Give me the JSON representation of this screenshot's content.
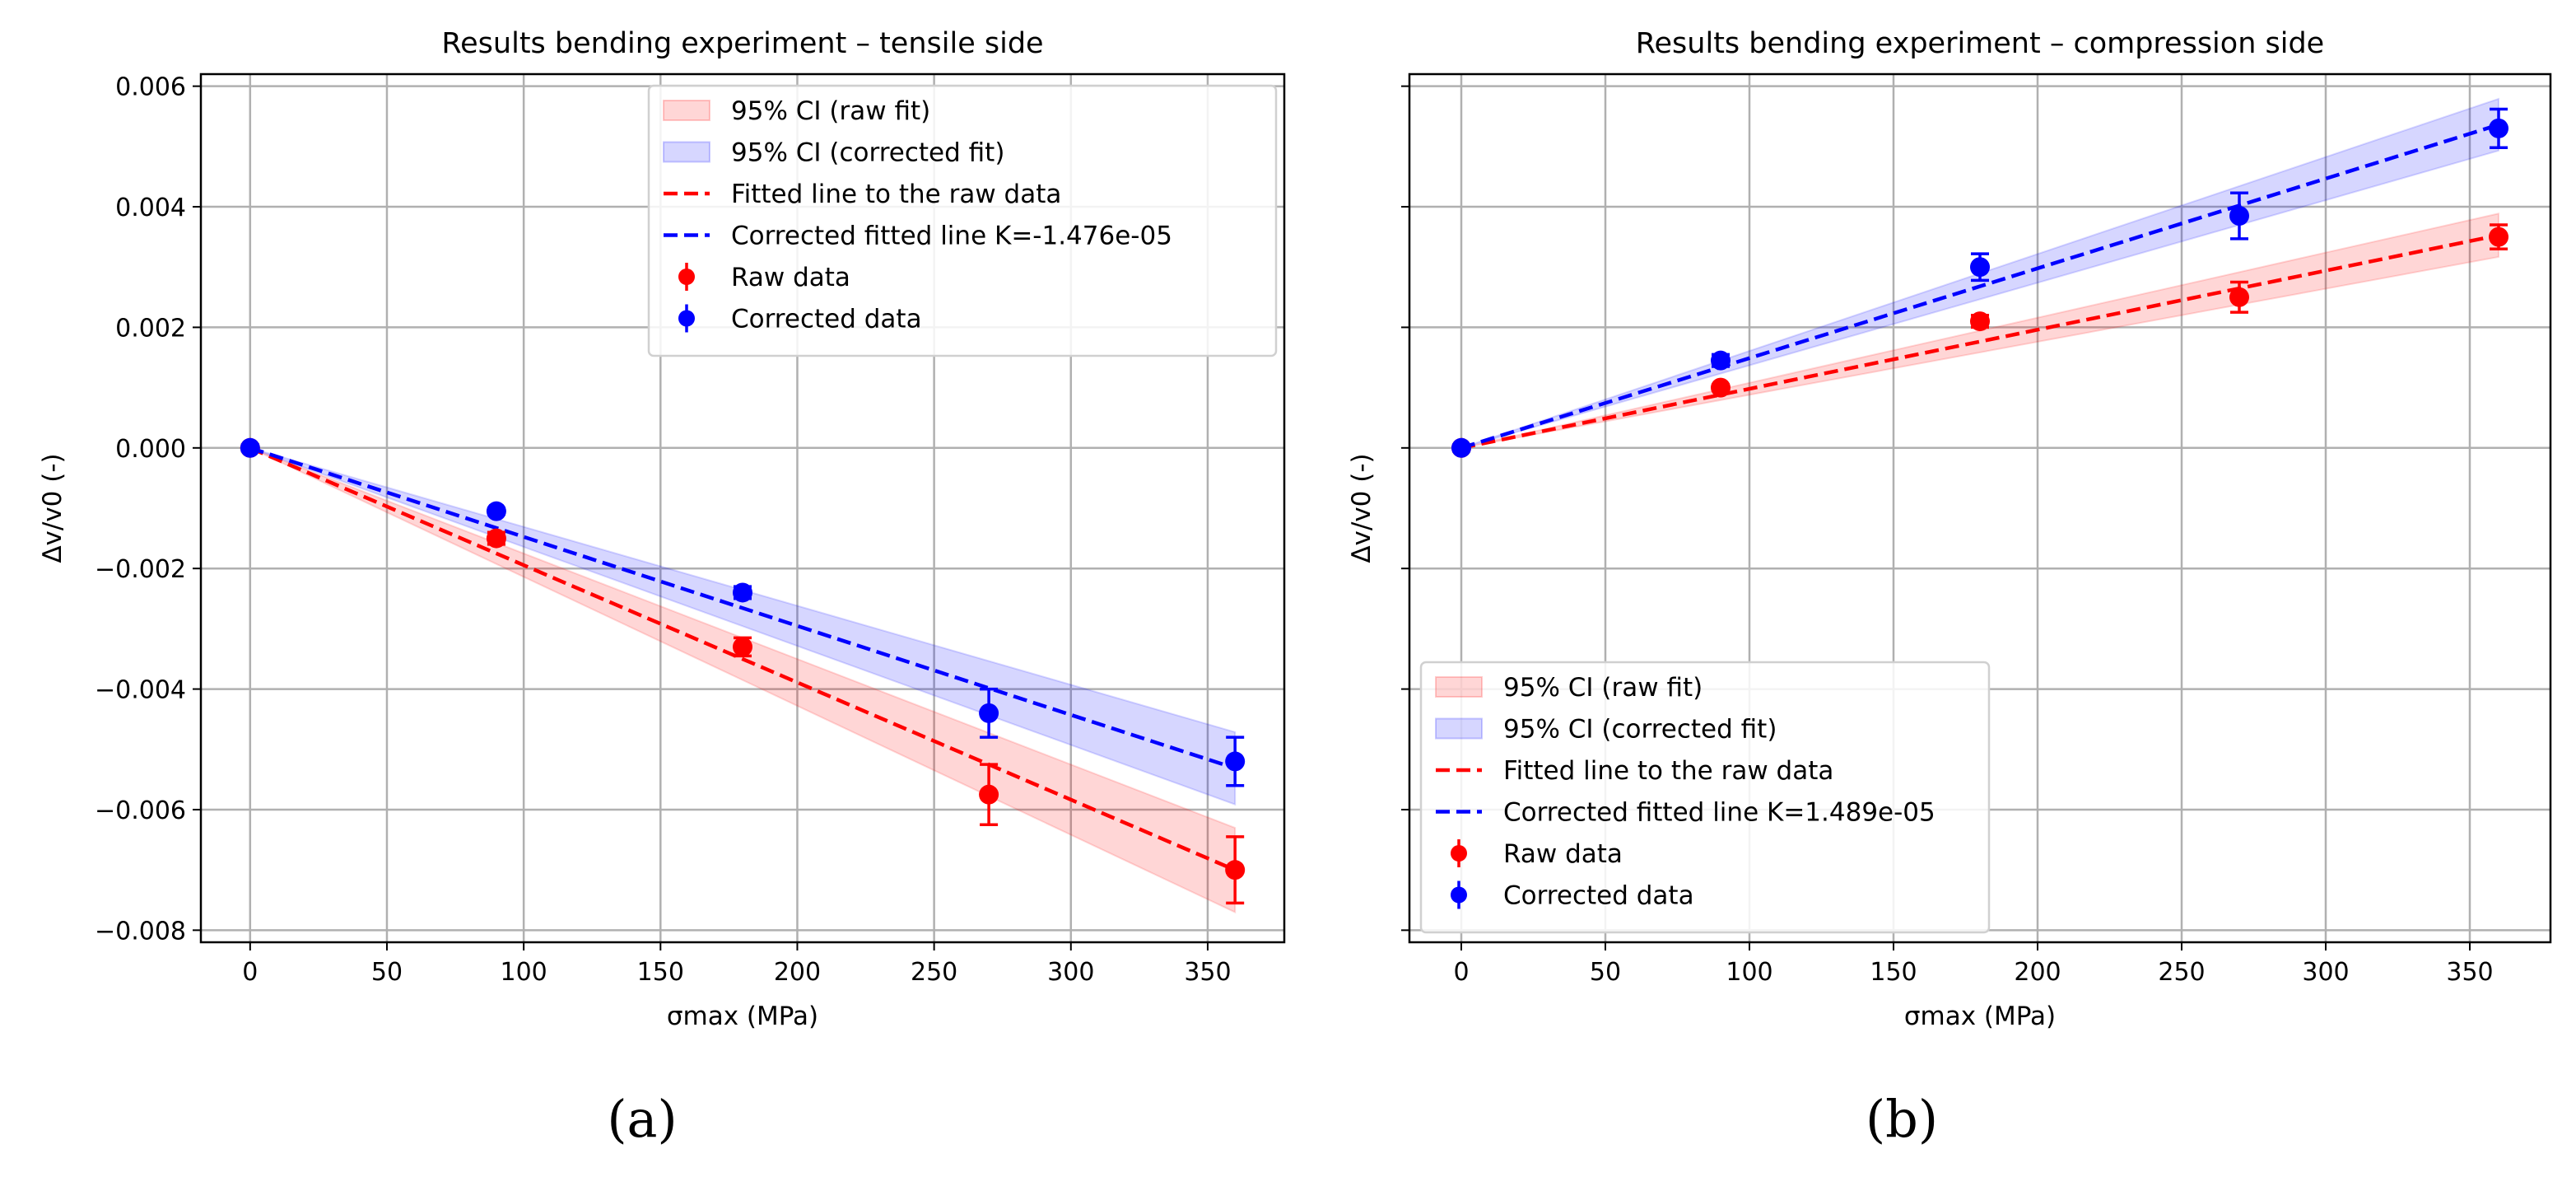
{
  "chart_data": [
    {
      "type": "scatter",
      "panel_label": "(a)",
      "title": "Results bending experiment – tensile side",
      "xlabel": "σmax (MPa)",
      "ylabel": "Δv/v0 (-)",
      "xlim": [
        -18,
        378
      ],
      "ylim": [
        -0.0082,
        0.0062
      ],
      "xticks": [
        0,
        50,
        100,
        150,
        200,
        250,
        300,
        350
      ],
      "yticks": [
        -0.008,
        -0.006,
        -0.004,
        -0.002,
        0.0,
        0.002,
        0.004,
        0.006
      ],
      "ytick_labels": [
        "−0.008",
        "−0.006",
        "−0.004",
        "−0.002",
        "0.000",
        "0.002",
        "0.004",
        "0.006"
      ],
      "grid": true,
      "legend_position": "top-right",
      "x": [
        0,
        90,
        180,
        270,
        360
      ],
      "series": [
        {
          "name": "Raw data",
          "color": "#ff0000",
          "values": [
            0,
            -0.0015,
            -0.0033,
            -0.00575,
            -0.007
          ],
          "errors": [
            5e-05,
            0.0001,
            0.00015,
            0.0005,
            0.00055
          ]
        },
        {
          "name": "Corrected data",
          "color": "#0000ff",
          "values": [
            0,
            -0.00105,
            -0.0024,
            -0.0044,
            -0.0052
          ],
          "errors": [
            5e-05,
            5e-05,
            0.0001,
            0.0004,
            0.0004
          ]
        }
      ],
      "fits": [
        {
          "name": "Fitted line to the raw data",
          "color": "#ff0000",
          "slope": -1.945e-05,
          "ci_name": "95% CI (raw fit)",
          "ci_halfwidth_at_max": 0.0007
        },
        {
          "name": "Corrected fitted line K=-1.476e-05",
          "color": "#0000ff",
          "slope": -1.476e-05,
          "ci_name": "95% CI (corrected fit)",
          "ci_halfwidth_at_max": 0.0006
        }
      ]
    },
    {
      "type": "scatter",
      "panel_label": "(b)",
      "title": "Results bending experiment – compression side",
      "xlabel": "σmax (MPa)",
      "ylabel": "Δv/v0 (-)",
      "xlim": [
        -18,
        378
      ],
      "ylim": [
        -0.0082,
        0.0062
      ],
      "xticks": [
        0,
        50,
        100,
        150,
        200,
        250,
        300,
        350
      ],
      "yticks": [
        -0.008,
        -0.006,
        -0.004,
        -0.002,
        0.0,
        0.002,
        0.004,
        0.006
      ],
      "ytick_labels": [],
      "grid": true,
      "legend_position": "bottom-left",
      "x": [
        0,
        90,
        180,
        270,
        360
      ],
      "series": [
        {
          "name": "Raw data",
          "color": "#ff0000",
          "values": [
            0,
            0.001,
            0.0021,
            0.0025,
            0.0035
          ],
          "errors": [
            5e-05,
            5e-05,
            0.0001,
            0.00025,
            0.0002
          ]
        },
        {
          "name": "Corrected data",
          "color": "#0000ff",
          "values": [
            0,
            0.00145,
            0.003,
            0.00385,
            0.0053
          ],
          "errors": [
            5e-05,
            0.0001,
            0.00022,
            0.00038,
            0.00032
          ]
        }
      ],
      "fits": [
        {
          "name": "Fitted line to the raw data",
          "color": "#ff0000",
          "slope": 9.8e-06,
          "ci_name": "95% CI (raw fit)",
          "ci_halfwidth_at_max": 0.00036
        },
        {
          "name": "Corrected fitted line K=1.489e-05",
          "color": "#0000ff",
          "slope": 1.489e-05,
          "ci_name": "95% CI (corrected fit)",
          "ci_halfwidth_at_max": 0.00043
        }
      ]
    }
  ]
}
